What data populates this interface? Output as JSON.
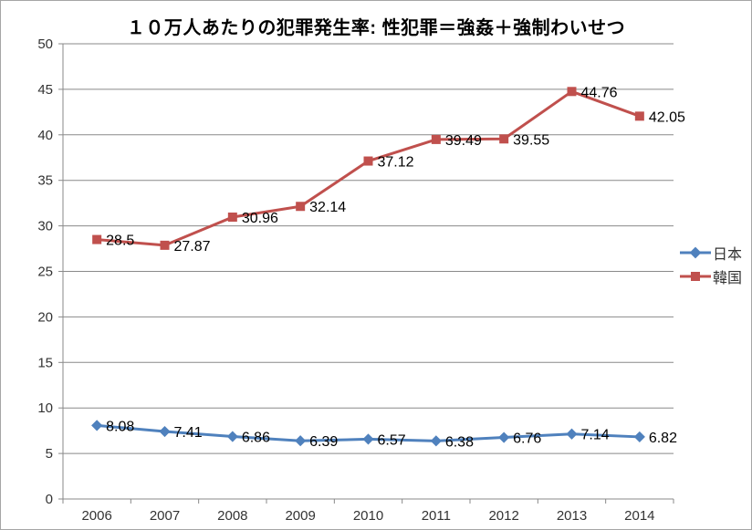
{
  "chart_data": {
    "type": "line",
    "title": "１０万人あたりの犯罪発生率: 性犯罪＝強姦＋強制わいせつ",
    "categories": [
      "2006",
      "2007",
      "2008",
      "2009",
      "2010",
      "2011",
      "2012",
      "2013",
      "2014"
    ],
    "series": [
      {
        "name": "日本",
        "color": "#4F81BD",
        "marker": "diamond",
        "values": [
          8.08,
          7.41,
          6.86,
          6.39,
          6.57,
          6.38,
          6.76,
          7.14,
          6.82
        ],
        "labels": [
          "8.08",
          "7.41",
          "6.86",
          "6.39",
          "6.57",
          "6.38",
          "6.76",
          "7.14",
          "6.82"
        ]
      },
      {
        "name": "韓国",
        "color": "#C0504D",
        "marker": "square",
        "values": [
          28.5,
          27.87,
          30.96,
          32.14,
          37.12,
          39.49,
          39.55,
          44.76,
          42.05
        ],
        "labels": [
          "28.5",
          "27.87",
          "30.96",
          "32.14",
          "37.12",
          "39.49",
          "39.55",
          "44.76",
          "42.05"
        ]
      }
    ],
    "xlabel": "",
    "ylabel": "",
    "ylim": [
      0,
      50
    ],
    "ytick_step": 5,
    "ytick_labels": [
      "0",
      "5",
      "10",
      "15",
      "20",
      "25",
      "30",
      "35",
      "40",
      "45",
      "50"
    ],
    "grid": true,
    "legend_position": "right",
    "colors": {
      "grid_line": "#898989",
      "axis_line": "#898989",
      "tick_label": "#333333",
      "data_label": "#000000",
      "title": "#000000",
      "background": "#ffffff",
      "border": "#a6a6a6"
    }
  }
}
